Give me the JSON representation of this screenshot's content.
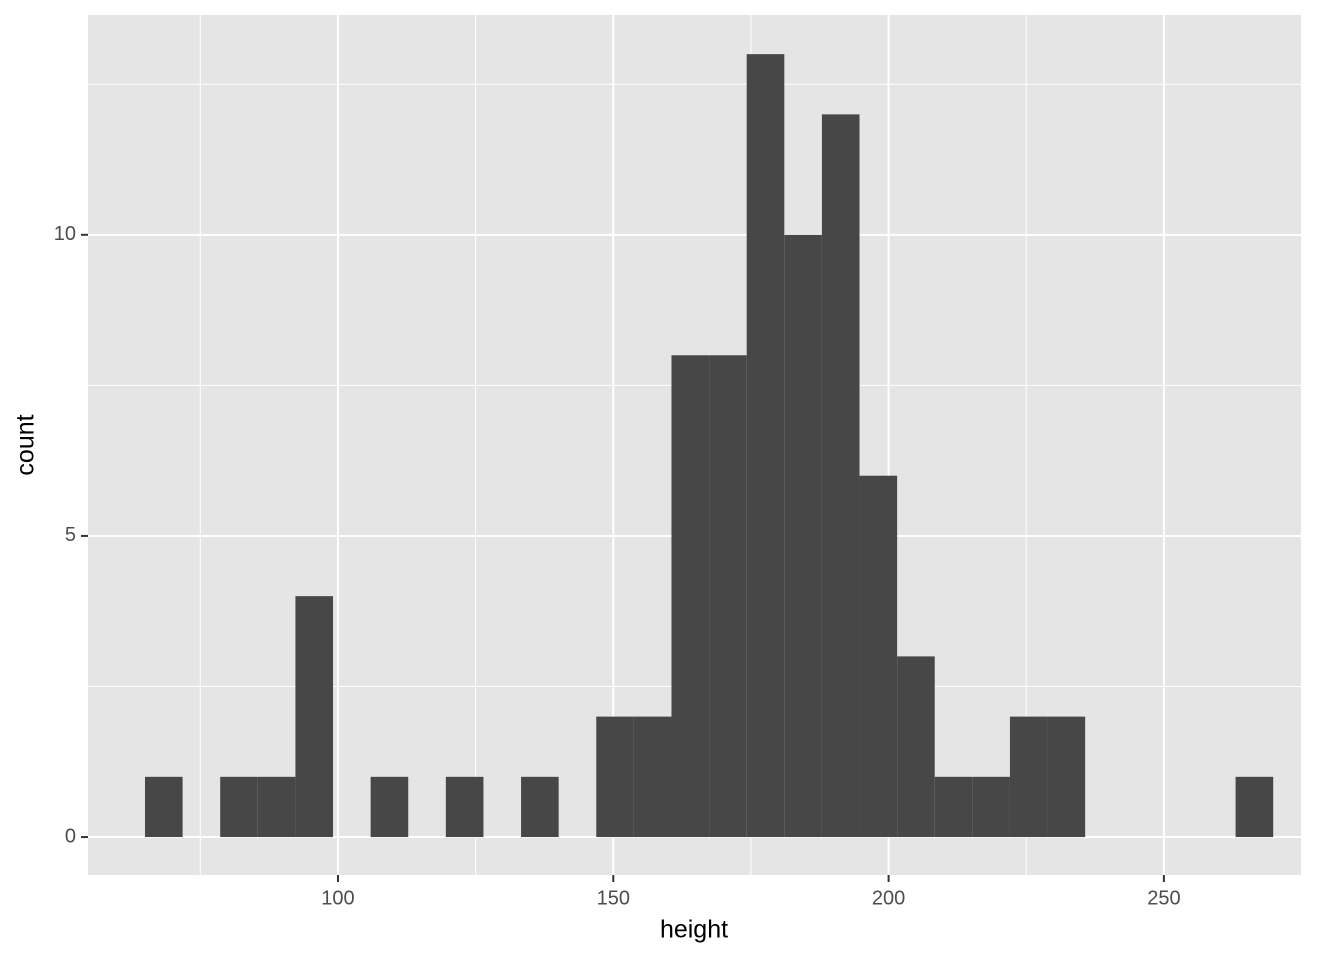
{
  "chart_data": {
    "type": "histogram",
    "x_label": "height",
    "y_label": "count",
    "bins": [
      64.95,
      71.78,
      78.61,
      85.44,
      92.27,
      99.1,
      105.93,
      112.76,
      119.59,
      126.42,
      133.25,
      140.08,
      146.91,
      153.74,
      160.57,
      167.4,
      174.23,
      181.06,
      187.89,
      194.72,
      201.55,
      208.38,
      215.21,
      222.04,
      228.87,
      235.7,
      242.53,
      249.36,
      256.19,
      263.02,
      269.85
    ],
    "values": [
      1,
      0,
      1,
      1,
      4,
      0,
      1,
      0,
      1,
      0,
      1,
      0,
      2,
      2,
      8,
      8,
      13,
      10,
      12,
      6,
      3,
      1,
      1,
      2,
      2,
      0,
      0,
      0,
      0,
      1
    ],
    "color": "#474747",
    "xlim": [
      54.6,
      274.9
    ],
    "xticks": [
      100,
      150,
      200,
      250
    ],
    "x_minor_grid": [
      75,
      125,
      175,
      225,
      275
    ],
    "ylim": [
      -0.63,
      13.65
    ],
    "yticks": [
      0,
      5,
      10
    ],
    "y_minor_grid": [
      2.5,
      7.5,
      12.5
    ],
    "grid": true
  }
}
